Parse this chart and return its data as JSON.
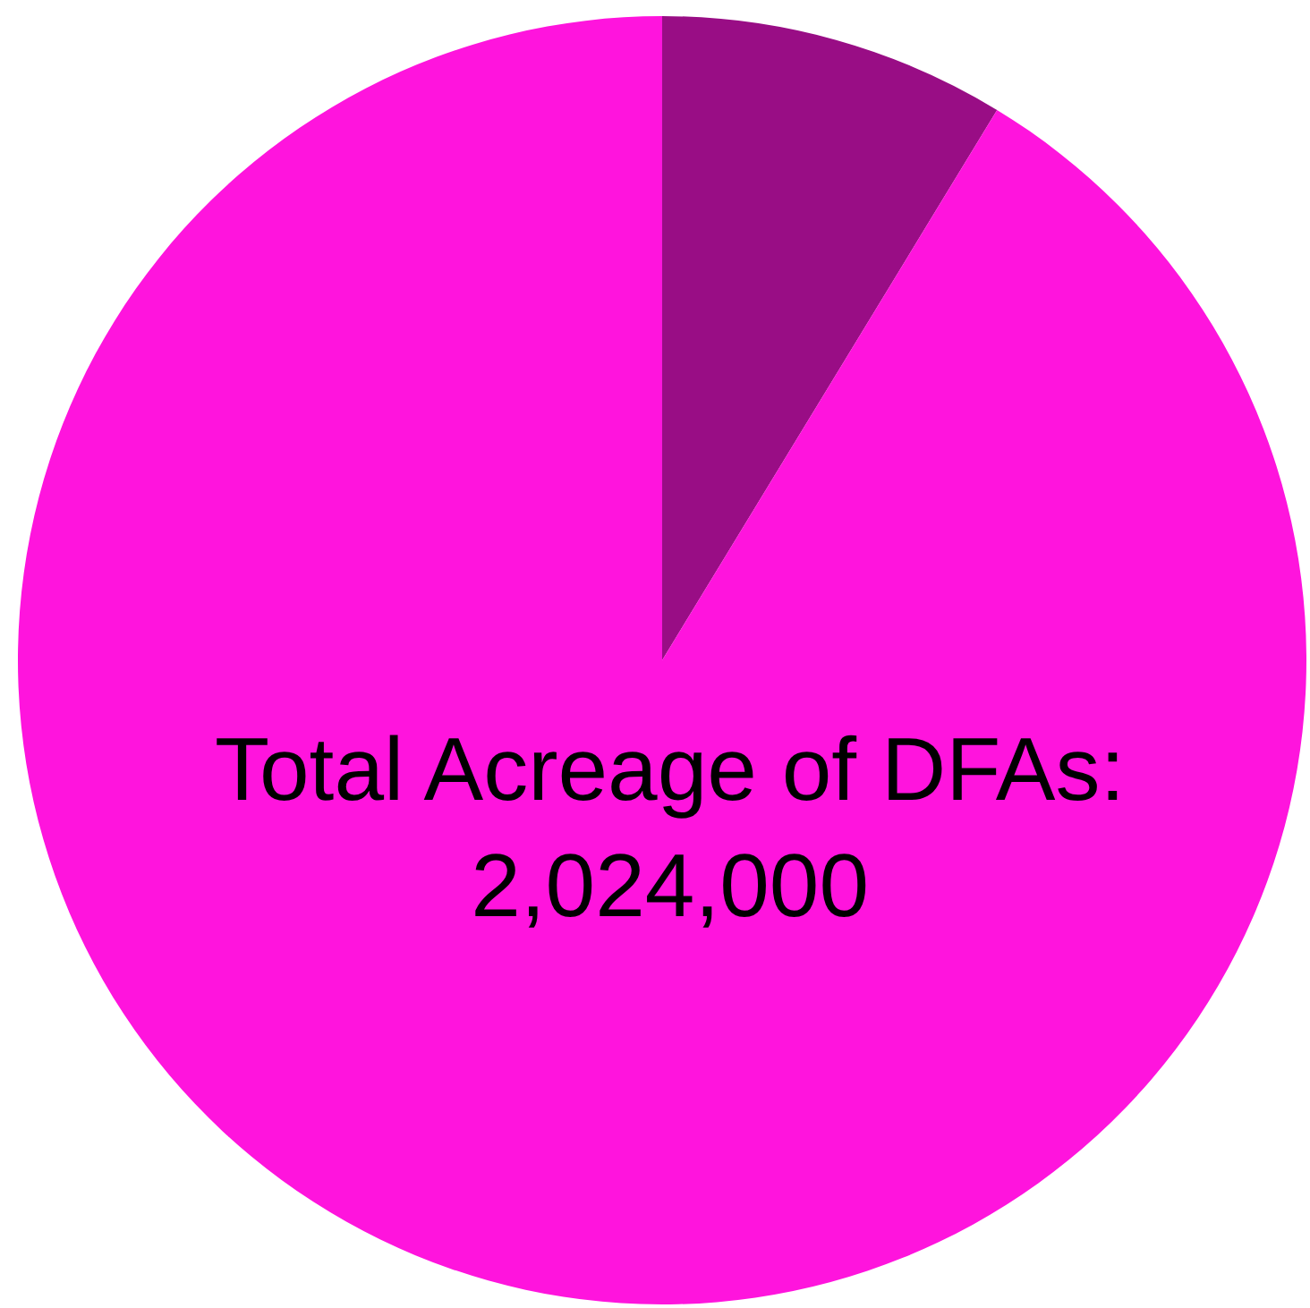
{
  "chart_data": {
    "type": "pie",
    "categories": [
      null,
      "Total Acreage of DFAs:\n2,024,000"
    ],
    "values": [
      8.7,
      91.3
    ],
    "colors": [
      "#990d85",
      "#ff14dd"
    ],
    "legend": false
  }
}
